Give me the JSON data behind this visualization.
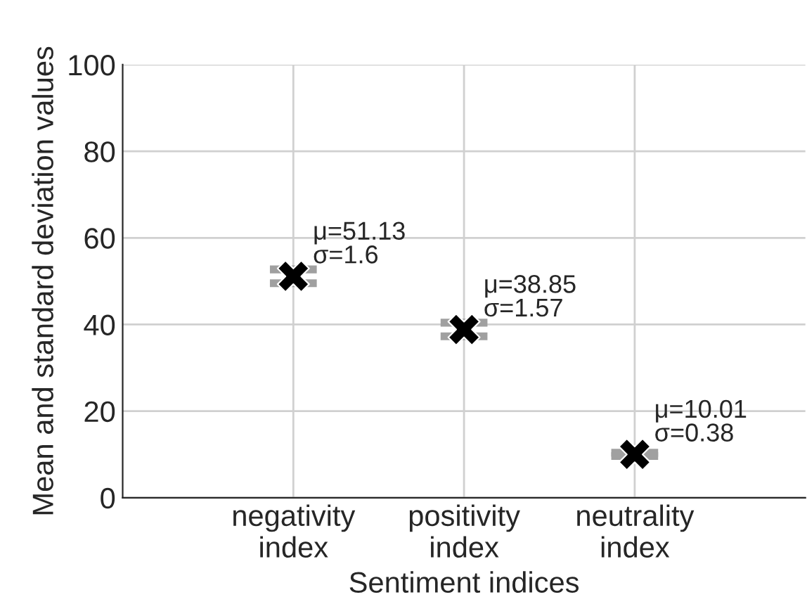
{
  "chart_data": {
    "type": "scatter",
    "xlabel": "Sentiment indices",
    "ylabel": "Mean and standard deviation values",
    "categories": [
      "negativity\nindex",
      "positivity\nindex",
      "neutrality\nindex"
    ],
    "series": [
      {
        "color": "#000000",
        "values": [
          51.13,
          38.85,
          10.01
        ],
        "errors": [
          1.6,
          1.57,
          0.38
        ]
      }
    ],
    "marker": "cross",
    "ylim": [
      0,
      100
    ],
    "yticks": [
      0,
      20,
      40,
      60,
      80,
      100
    ],
    "grid": true,
    "annotations": [
      {
        "text": "μ=51.13\nσ=1.6",
        "x": "negativity\nindex",
        "y": 51.13
      },
      {
        "text": "μ=38.85\nσ=1.57",
        "x": "positivity\nindex",
        "y": 38.85
      },
      {
        "text": "μ=10.01\nσ=0.38",
        "x": "neutrality\nindex",
        "y": 10.01
      }
    ]
  }
}
